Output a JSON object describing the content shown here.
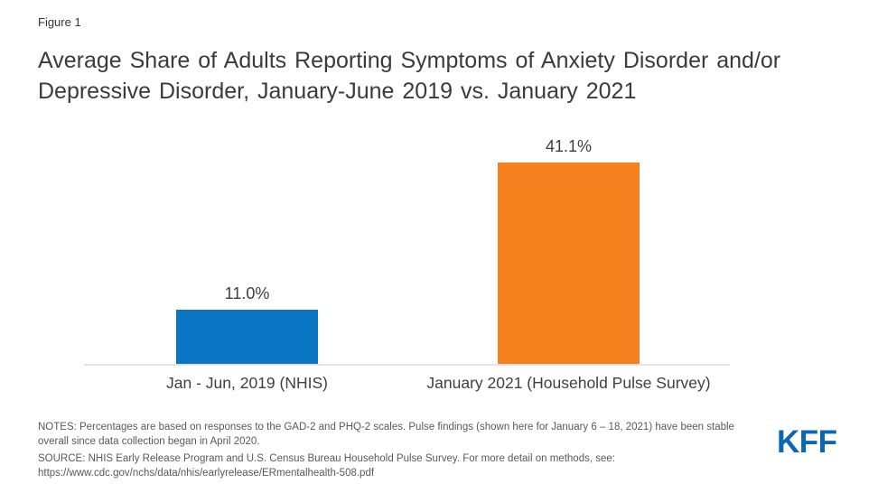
{
  "header": {
    "figure_label": "Figure 1",
    "title": "Average Share of Adults Reporting Symptoms of Anxiety Disorder and/or Depressive Disorder, January-June 2019 vs. January 2021"
  },
  "chart_data": {
    "type": "bar",
    "title": "Average Share of Adults Reporting Symptoms of Anxiety Disorder and/or Depressive Disorder, January-June 2019 vs. January 2021",
    "categories": [
      "Jan - Jun, 2019 (NHIS)",
      "January 2021 (Household Pulse Survey)"
    ],
    "values": [
      11.0,
      41.1
    ],
    "value_labels": [
      "11.0%",
      "41.1%"
    ],
    "bar_colors": [
      "#0B76C3",
      "#F5821F"
    ],
    "xlabel": "",
    "ylabel": "",
    "ylim": [
      0,
      45
    ],
    "grid": false,
    "legend": false
  },
  "footer": {
    "notes": "NOTES: Percentages are based on responses to the GAD-2 and PHQ-2 scales. Pulse findings (shown here for January 6 – 18, 2021) have been stable overall since data collection began in April 2020.",
    "source": "SOURCE: NHIS Early Release Program and U.S. Census Bureau Household Pulse Survey. For more detail on methods, see:",
    "url": "https://www.cdc.gov/nchs/data/nhis/earlyrelease/ERmentalhealth-508.pdf",
    "logo_text": "KFF"
  },
  "colors": {
    "background": "#FFFFFF",
    "axis_line": "#E4E4E4",
    "title_text": "#3B3B3B",
    "label_text": "#404040",
    "notes_text": "#595959",
    "logo_blue": "#0C66B0"
  }
}
